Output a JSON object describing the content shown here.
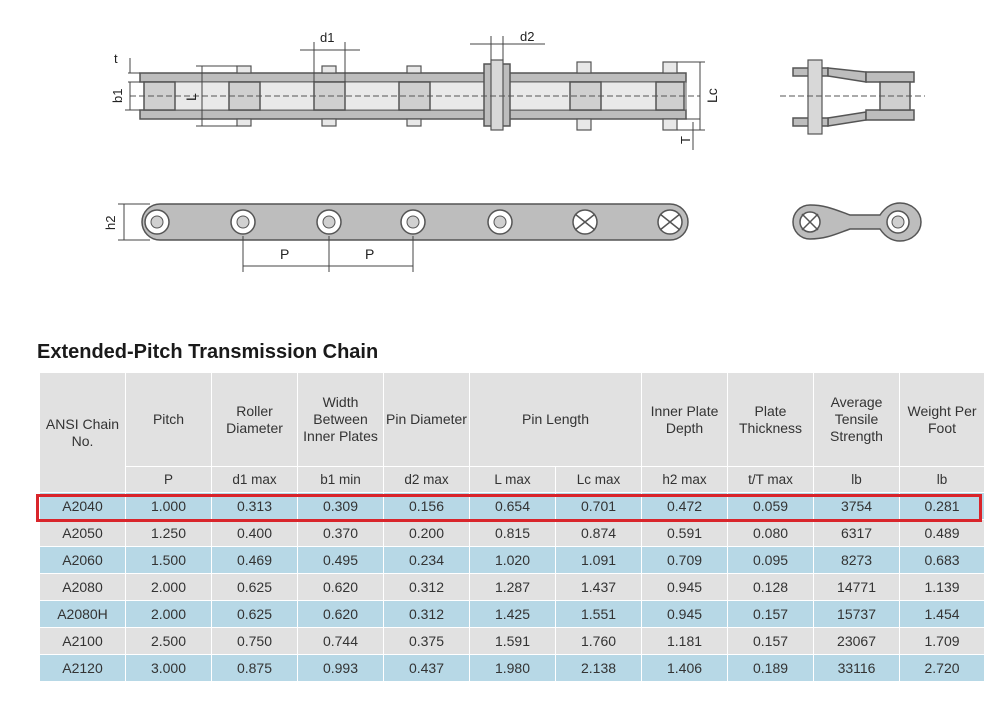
{
  "diagram": {
    "labels": {
      "t": "t",
      "b1": "b1",
      "L": "L",
      "d1": "d1",
      "d2": "d2",
      "Lc": "Lc",
      "T": "T",
      "h2": "h2",
      "P1": "P",
      "P2": "P"
    }
  },
  "title": "Extended-Pitch Transmission Chain",
  "table": {
    "headers": [
      "ANSI Chain No.",
      "Pitch",
      "Roller Diameter",
      "Width Between Inner Plates",
      "Pin Diameter",
      "Pin Length",
      "Inner Plate Depth",
      "Plate Thickness",
      "Average Tensile Strength",
      "Weight Per Foot"
    ],
    "units": [
      "P",
      "d1 max",
      "b1 min",
      "d2 max",
      "L max",
      "Lc max",
      "h2 max",
      "t/T max",
      "lb",
      "lb"
    ],
    "rows": [
      [
        "A2040",
        "1.000",
        "0.313",
        "0.309",
        "0.156",
        "0.654",
        "0.701",
        "0.472",
        "0.059",
        "3754",
        "0.281"
      ],
      [
        "A2050",
        "1.250",
        "0.400",
        "0.370",
        "0.200",
        "0.815",
        "0.874",
        "0.591",
        "0.080",
        "6317",
        "0.489"
      ],
      [
        "A2060",
        "1.500",
        "0.469",
        "0.495",
        "0.234",
        "1.020",
        "1.091",
        "0.709",
        "0.095",
        "8273",
        "0.683"
      ],
      [
        "A2080",
        "2.000",
        "0.625",
        "0.620",
        "0.312",
        "1.287",
        "1.437",
        "0.945",
        "0.128",
        "14771",
        "1.139"
      ],
      [
        "A2080H",
        "2.000",
        "0.625",
        "0.620",
        "0.312",
        "1.425",
        "1.551",
        "0.945",
        "0.157",
        "15737",
        "1.454"
      ],
      [
        "A2100",
        "2.500",
        "0.750",
        "0.744",
        "0.375",
        "1.591",
        "1.760",
        "1.181",
        "0.157",
        "23067",
        "1.709"
      ],
      [
        "A2120",
        "3.000",
        "0.875",
        "0.993",
        "0.437",
        "1.980",
        "2.138",
        "1.406",
        "0.189",
        "33116",
        "2.720"
      ]
    ],
    "highlighted_row": "A2040",
    "highlight_color": "#d9252b",
    "row_colors": [
      "#b7d8e6",
      "#e1e1e1"
    ]
  }
}
